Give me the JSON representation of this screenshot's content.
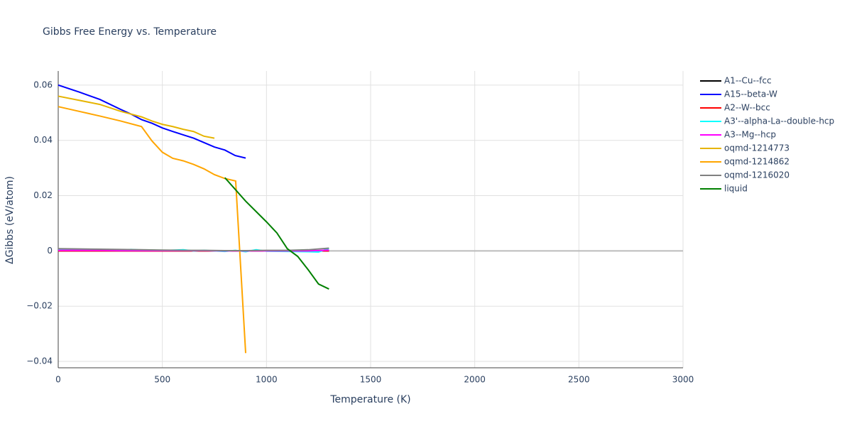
{
  "chart_data": {
    "type": "line",
    "title": "Gibbs Free Energy vs. Temperature",
    "x_label": "Temperature (K)",
    "y_label": "ΔGibbs (eV/atom)",
    "xlim": [
      0,
      3000
    ],
    "xticks": [
      0,
      500,
      1000,
      1500,
      2000,
      2500,
      3000
    ],
    "ylim": [
      -0.0423,
      0.0651
    ],
    "yticks": [
      {
        "value": -0.04,
        "label": "−0.04"
      },
      {
        "value": -0.02,
        "label": "−0.02"
      },
      0,
      0.02,
      0.04,
      0.06
    ],
    "grid": true,
    "zeroline": true,
    "legend": "right",
    "series": [
      {
        "name": "A1--Cu--fcc",
        "color": "#000000",
        "x": [
          0,
          100,
          200,
          300,
          400,
          500,
          600,
          700,
          800,
          900,
          1000,
          1100,
          1200,
          1300
        ],
        "values": [
          0,
          0,
          0,
          0,
          0,
          0,
          0,
          0,
          0,
          0,
          0,
          0,
          0,
          0
        ]
      },
      {
        "name": "A15--beta-W",
        "color": "#0000ff",
        "x": [
          0,
          100,
          200,
          300,
          350,
          400,
          450,
          500,
          550,
          600,
          650,
          700,
          750,
          800,
          850,
          900
        ],
        "values": [
          0.06,
          0.0575,
          0.0548,
          0.0512,
          0.0495,
          0.0475,
          0.0462,
          0.0445,
          0.0432,
          0.042,
          0.0408,
          0.0392,
          0.0376,
          0.0365,
          0.0345,
          0.0336
        ]
      },
      {
        "name": "A2--W--bcc",
        "color": "#ff0000",
        "x": [
          0,
          100,
          200,
          300,
          400,
          500,
          600,
          700,
          800,
          900,
          1000,
          1100,
          1200,
          1300
        ],
        "values": [
          0,
          0,
          0,
          0,
          0,
          0,
          0,
          0,
          0,
          0,
          0,
          0,
          0,
          0
        ]
      },
      {
        "name": "A3'--alpha-La--double-hcp",
        "color": "#00ffff",
        "x": [
          0,
          100,
          200,
          300,
          350,
          400,
          500,
          600,
          650,
          700,
          800,
          850,
          900,
          950,
          1000,
          1100,
          1200,
          1250,
          1300
        ],
        "values": [
          0.0004,
          0.0004,
          0.0003,
          0.0003,
          0.0005,
          0.0003,
          0.0001,
          0.0004,
          0.0,
          0.0002,
          -0.0002,
          0.0002,
          -0.0003,
          0.0004,
          -0.0001,
          -0.0002,
          -0.0003,
          -0.0004,
          0.0009
        ]
      },
      {
        "name": "A3--Mg--hcp",
        "color": "#ff00ff",
        "x": [
          0,
          100,
          200,
          300,
          400,
          500,
          600,
          700,
          800,
          900,
          1000,
          1100,
          1200,
          1300
        ],
        "values": [
          0.0002,
          0.0002,
          0.0002,
          0.0001,
          0.0001,
          0.0001,
          0.0001,
          0.0001,
          0.0,
          0.0,
          0.0,
          0.0,
          0.0,
          0.0003
        ]
      },
      {
        "name": "oqmd-1214773",
        "color": "#e6b400",
        "x": [
          0,
          100,
          200,
          300,
          400,
          450,
          500,
          550,
          600,
          650,
          700,
          750
        ],
        "values": [
          0.056,
          0.0545,
          0.053,
          0.0505,
          0.0485,
          0.047,
          0.0458,
          0.045,
          0.044,
          0.0432,
          0.0415,
          0.0408
        ]
      },
      {
        "name": "oqmd-1214862",
        "color": "#ffa500",
        "x": [
          0,
          100,
          200,
          300,
          400,
          450,
          500,
          550,
          600,
          650,
          700,
          750,
          800,
          852,
          900
        ],
        "values": [
          0.0522,
          0.0505,
          0.0488,
          0.047,
          0.045,
          0.0398,
          0.0357,
          0.0335,
          0.0326,
          0.0313,
          0.0297,
          0.0276,
          0.0262,
          0.0253,
          -0.037
        ]
      },
      {
        "name": "oqmd-1216020",
        "color": "#808080",
        "x": [
          0,
          100,
          200,
          300,
          400,
          500,
          600,
          700,
          800,
          900,
          1000,
          1100,
          1200,
          1300
        ],
        "values": [
          0.0008,
          0.0007,
          0.0006,
          0.0005,
          0.0004,
          0.0003,
          0.0002,
          0.0002,
          0.0001,
          0.0001,
          0.0002,
          0.0002,
          0.0004,
          0.001
        ]
      },
      {
        "name": "liquid",
        "color": "#008000",
        "x": [
          800,
          900,
          1000,
          1050,
          1100,
          1150,
          1200,
          1250,
          1300
        ],
        "values": [
          0.0265,
          0.018,
          0.0105,
          0.0065,
          0.0008,
          -0.002,
          -0.0068,
          -0.012,
          -0.0138
        ]
      }
    ]
  }
}
